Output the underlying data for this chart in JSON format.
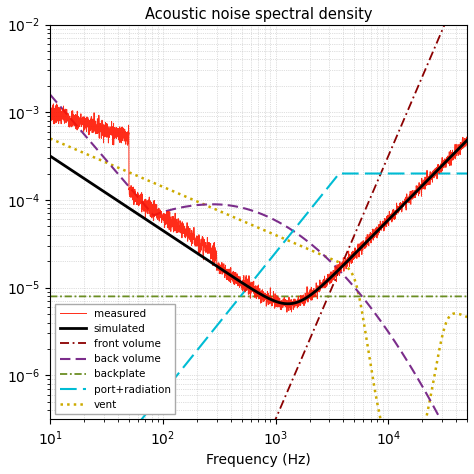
{
  "title": "Acoustic noise spectral density",
  "xlabel": "Frequency (Hz)",
  "xlim_log": [
    1,
    4.7
  ],
  "ylim_log": [
    -6.5,
    -2.0
  ],
  "legend": [
    "measured",
    "simulated",
    "vent",
    "back volume",
    "backplate",
    "port+radiation",
    "front volume"
  ],
  "line_colors": [
    "#ff2200",
    "#000000",
    "#ccaa00",
    "#7b2d8b",
    "#669900",
    "#00ccdd",
    "#8b0000"
  ],
  "background_color": "#ffffff",
  "grid_color": "#bbbbbb"
}
